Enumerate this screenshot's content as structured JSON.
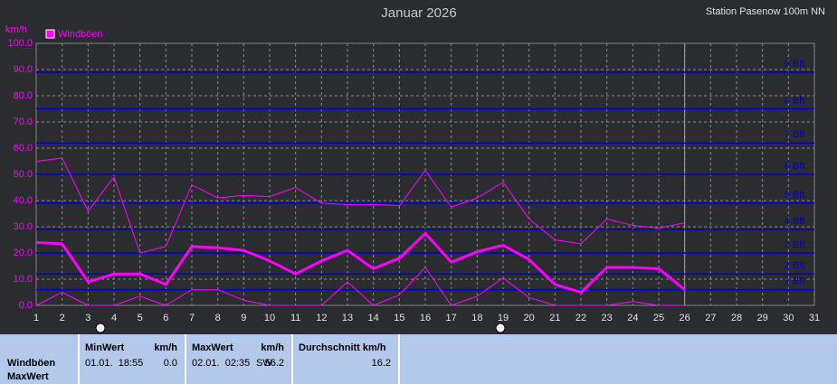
{
  "chart_data": {
    "type": "line",
    "title": "Januar 2026",
    "subtitle": "Station Pasenow 100m NN",
    "y_label": "km/h",
    "x": [
      1,
      2,
      3,
      4,
      5,
      6,
      7,
      8,
      9,
      10,
      11,
      12,
      13,
      14,
      15,
      16,
      17,
      18,
      19,
      20,
      21,
      22,
      23,
      24,
      25,
      26
    ],
    "series": [
      {
        "name": "Windböen",
        "color": "#ff00ff",
        "values": [
          24,
          23.5,
          9,
          12,
          12,
          8,
          22.5,
          22,
          21,
          17,
          12,
          17,
          21,
          14,
          18,
          27.5,
          16.5,
          20.5,
          23,
          17.5,
          8,
          5,
          14.5,
          14.5,
          14,
          6
        ]
      },
      {
        "color": "#ff00ff",
        "values": [
          55,
          56.2,
          36,
          49,
          20,
          22.5,
          46,
          41,
          42,
          41.5,
          45,
          39,
          38.5,
          38.5,
          38,
          51.5,
          37.5,
          41,
          47,
          33,
          25,
          23.5,
          33,
          30.5,
          29.5,
          31.5
        ]
      },
      {
        "color": "#ff00ff",
        "values": [
          0,
          5,
          0,
          0,
          3.5,
          0,
          6,
          6,
          2,
          0,
          0,
          0,
          9,
          0,
          4,
          14.5,
          0,
          3.5,
          10.5,
          3,
          0,
          0,
          0,
          1.5,
          0,
          0
        ]
      }
    ],
    "xlim": [
      1,
      31
    ],
    "xticks": [
      1,
      2,
      3,
      4,
      5,
      6,
      7,
      8,
      9,
      10,
      11,
      12,
      13,
      14,
      15,
      16,
      17,
      18,
      19,
      20,
      21,
      22,
      23,
      24,
      25,
      26,
      27,
      28,
      29,
      30,
      31
    ],
    "ylim": [
      0,
      100
    ],
    "yticks": [
      {
        "value": 0,
        "label": "0.0"
      },
      {
        "value": 10,
        "label": "10.0"
      },
      {
        "value": 20,
        "label": "20.0"
      },
      {
        "value": 30,
        "label": "30.0"
      },
      {
        "value": 40,
        "label": "40.0"
      },
      {
        "value": 50,
        "label": "50.0"
      },
      {
        "value": 60,
        "label": "60.0"
      },
      {
        "value": 70,
        "label": "70.0"
      },
      {
        "value": 80,
        "label": "80.0"
      },
      {
        "value": 90,
        "label": "90.0"
      },
      {
        "value": 100,
        "label": "100.0"
      }
    ],
    "grid": true,
    "current_x": 26,
    "reference_lines": [
      {
        "value": 6,
        "label": "1 Bft"
      },
      {
        "value": 12,
        "label": "2 Bft"
      },
      {
        "value": 20,
        "label": "3 Bft"
      },
      {
        "value": 29,
        "label": "4 Bft"
      },
      {
        "value": 39,
        "label": "5 Bft"
      },
      {
        "value": 50,
        "label": "6 Bft"
      },
      {
        "value": 62,
        "label": "7 Bft"
      },
      {
        "value": 75,
        "label": "8 Bft"
      },
      {
        "value": 89,
        "label": "9 Bft"
      }
    ],
    "reference_color": "#0000cc"
  },
  "table": {
    "row_labels": [
      "Windböen",
      "MaxWert"
    ],
    "headers": [
      "MinWert",
      "km/h",
      "MaxWert",
      "km/h",
      "Durchschnitt km/h"
    ],
    "cells": [
      "01.01.  18:55",
      "0.0",
      "02.01.  02:35",
      "SW",
      "56.2",
      "16.2"
    ]
  }
}
